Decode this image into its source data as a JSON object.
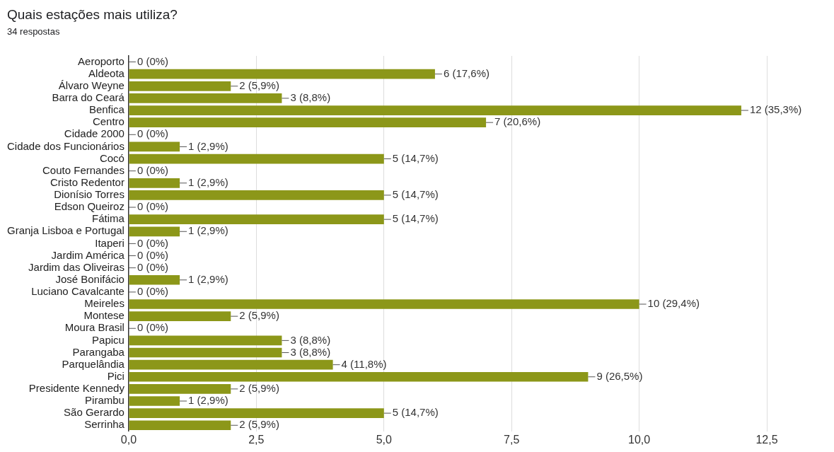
{
  "chart_data": {
    "type": "bar",
    "orientation": "horizontal",
    "title": "Quais estações mais utiliza?",
    "subtitle": "34 respostas",
    "categories": [
      "Aeroporto",
      "Aldeota",
      "Álvaro Weyne",
      "Barra do Ceará",
      "Benfica",
      "Centro",
      "Cidade 2000",
      "Cidade dos Funcionários",
      "Cocó",
      "Couto Fernandes",
      "Cristo Redentor",
      "Dionísio Torres",
      "Edson Queiroz",
      "Fátima",
      "Granja Lisboa e Portugal",
      "Itaperi",
      "Jardim América",
      "Jardim das Oliveiras",
      "José Bonifácio",
      "Luciano Cavalcante",
      "Meireles",
      "Montese",
      "Moura Brasil",
      "Papicu",
      "Parangaba",
      "Parquelândia",
      "Pici",
      "Presidente Kennedy",
      "Pirambu",
      "São Gerardo",
      "Serrinha"
    ],
    "values": [
      0,
      6,
      2,
      3,
      12,
      7,
      0,
      1,
      5,
      0,
      1,
      5,
      0,
      5,
      1,
      0,
      0,
      0,
      1,
      0,
      10,
      2,
      0,
      3,
      3,
      4,
      9,
      2,
      1,
      5,
      2
    ],
    "value_labels": [
      "0 (0%)",
      "6 (17,6%)",
      "2 (5,9%)",
      "3 (8,8%)",
      "12 (35,3%)",
      "7 (20,6%)",
      "0 (0%)",
      "1 (2,9%)",
      "5 (14,7%)",
      "0 (0%)",
      "1 (2,9%)",
      "5 (14,7%)",
      "0 (0%)",
      "5 (14,7%)",
      "1 (2,9%)",
      "0 (0%)",
      "0 (0%)",
      "0 (0%)",
      "1 (2,9%)",
      "0 (0%)",
      "10 (29,4%)",
      "2 (5,9%)",
      "0 (0%)",
      "3 (8,8%)",
      "3 (8,8%)",
      "4 (11,8%)",
      "9 (26,5%)",
      "2 (5,9%)",
      "1 (2,9%)",
      "5 (14,7%)",
      "2 (5,9%)"
    ],
    "color": "#8c9719",
    "xlim": [
      0,
      12.5
    ],
    "xticks": [
      {
        "value": 0,
        "label": "0,0"
      },
      {
        "value": 2.5,
        "label": "2,5"
      },
      {
        "value": 5,
        "label": "5,0"
      },
      {
        "value": 7.5,
        "label": "7,5"
      },
      {
        "value": 10,
        "label": "10,0"
      },
      {
        "value": 12.5,
        "label": "12,5"
      }
    ],
    "grid": "x"
  }
}
